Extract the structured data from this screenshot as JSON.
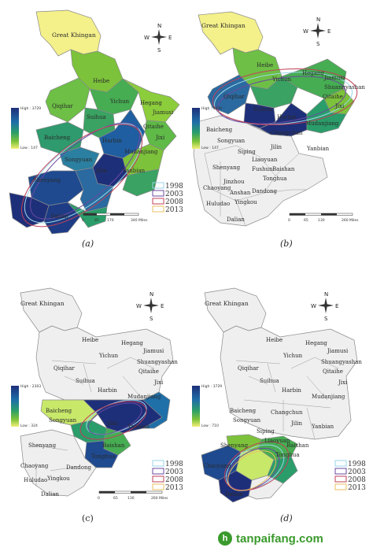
{
  "panels": [
    {
      "id": "a",
      "caption": "(a)",
      "legend_high": "High : 3729",
      "legend_low": "Low : 147",
      "scale_labels": [
        "0",
        "85",
        "170",
        "340 Miles"
      ],
      "region_labels": [
        "Great Khingan",
        "Heibe",
        "Qiqihar",
        "Yichun",
        "Suihua",
        "Hegang",
        "Jiamusi",
        "Baicheng",
        "Harbin",
        "Qitaihe",
        "Jixi",
        "Songyuan",
        "Jilin",
        "Mudanjiang",
        "Yanbian",
        "Shenyang",
        "Dalian"
      ]
    },
    {
      "id": "b",
      "caption": "(b)",
      "legend_high": "High : 3030",
      "legend_low": "Low : 147",
      "scale_labels": [
        "0",
        "65",
        "130",
        "260 Miles"
      ],
      "region_labels": [
        "Great Khingan",
        "Heibe",
        "Qiqihar",
        "Yichun",
        "Hegang",
        "Jiamusi",
        "Shuangyashan",
        "Qitaihe",
        "Jixi",
        "Suihua",
        "Harbin",
        "Mudanjiang",
        "Baicheng",
        "Songyuan",
        "Changchun",
        "Siping",
        "Jilin",
        "Yanbian",
        "Liaoyuan",
        "Shenyang",
        "Fushun",
        "Baishan",
        "Tonghua",
        "Chaoyang",
        "Jinzhou",
        "Anshan",
        "Dandong",
        "Huludao",
        "Yingkou",
        "Dalian"
      ]
    },
    {
      "id": "c",
      "caption": "(c)",
      "legend_high": "High : 2303",
      "legend_low": "Low : 324",
      "scale_labels": [
        "0",
        "65",
        "130",
        "260 Miles"
      ],
      "region_labels": [
        "Great Khingan",
        "Heibe",
        "Yichun",
        "Hegang",
        "Jiamusi",
        "Qiqihar",
        "Suihua",
        "Shuangyashan",
        "Qitaihe",
        "Jixi",
        "Harbin",
        "Mudanjiang",
        "Baicheng",
        "Songyuan",
        "Jilin",
        "Yanbian",
        "Shenyang",
        "Baishan",
        "Tonghua",
        "Chaoyang",
        "Dandong",
        "Huludao",
        "Yingkou",
        "Dalian"
      ]
    },
    {
      "id": "d",
      "caption": "(d)",
      "legend_high": "High : 3729",
      "legend_low": "Low : 710",
      "scale_labels": [],
      "region_labels": [
        "Great Khingan",
        "Heibe",
        "Yichun",
        "Hegang",
        "Jiamusi",
        "Qiqihar",
        "Suihua",
        "Shuangyashan",
        "Qitaihe",
        "Jixi",
        "Harbin",
        "Mudanjiang",
        "Baicheng",
        "Songyuan",
        "Changchun",
        "Jilin",
        "Yanbian",
        "Siping",
        "Liaoyuan",
        "Shenyang",
        "Baishan",
        "Tonghua",
        "Chaoyang",
        "Dalian"
      ]
    }
  ],
  "legend_years": [
    "1998",
    "2003",
    "2008",
    "2013"
  ],
  "legend_year_colors": [
    "#9ad6e8",
    "#6a4aa0",
    "#c0405a",
    "#e8c060"
  ],
  "compass": {
    "n": "N",
    "s": "S",
    "e": "E",
    "w": "W"
  },
  "colors": {
    "high": "#1e2f7a",
    "mid_high": "#1f6fa8",
    "mid": "#2a9d6a",
    "mid_low": "#7cc23a",
    "low": "#f2ef7a",
    "empty": "#efefef",
    "border": "#8a8a8a"
  },
  "watermark": {
    "icon": "h",
    "text": "tanpaifang.com"
  }
}
